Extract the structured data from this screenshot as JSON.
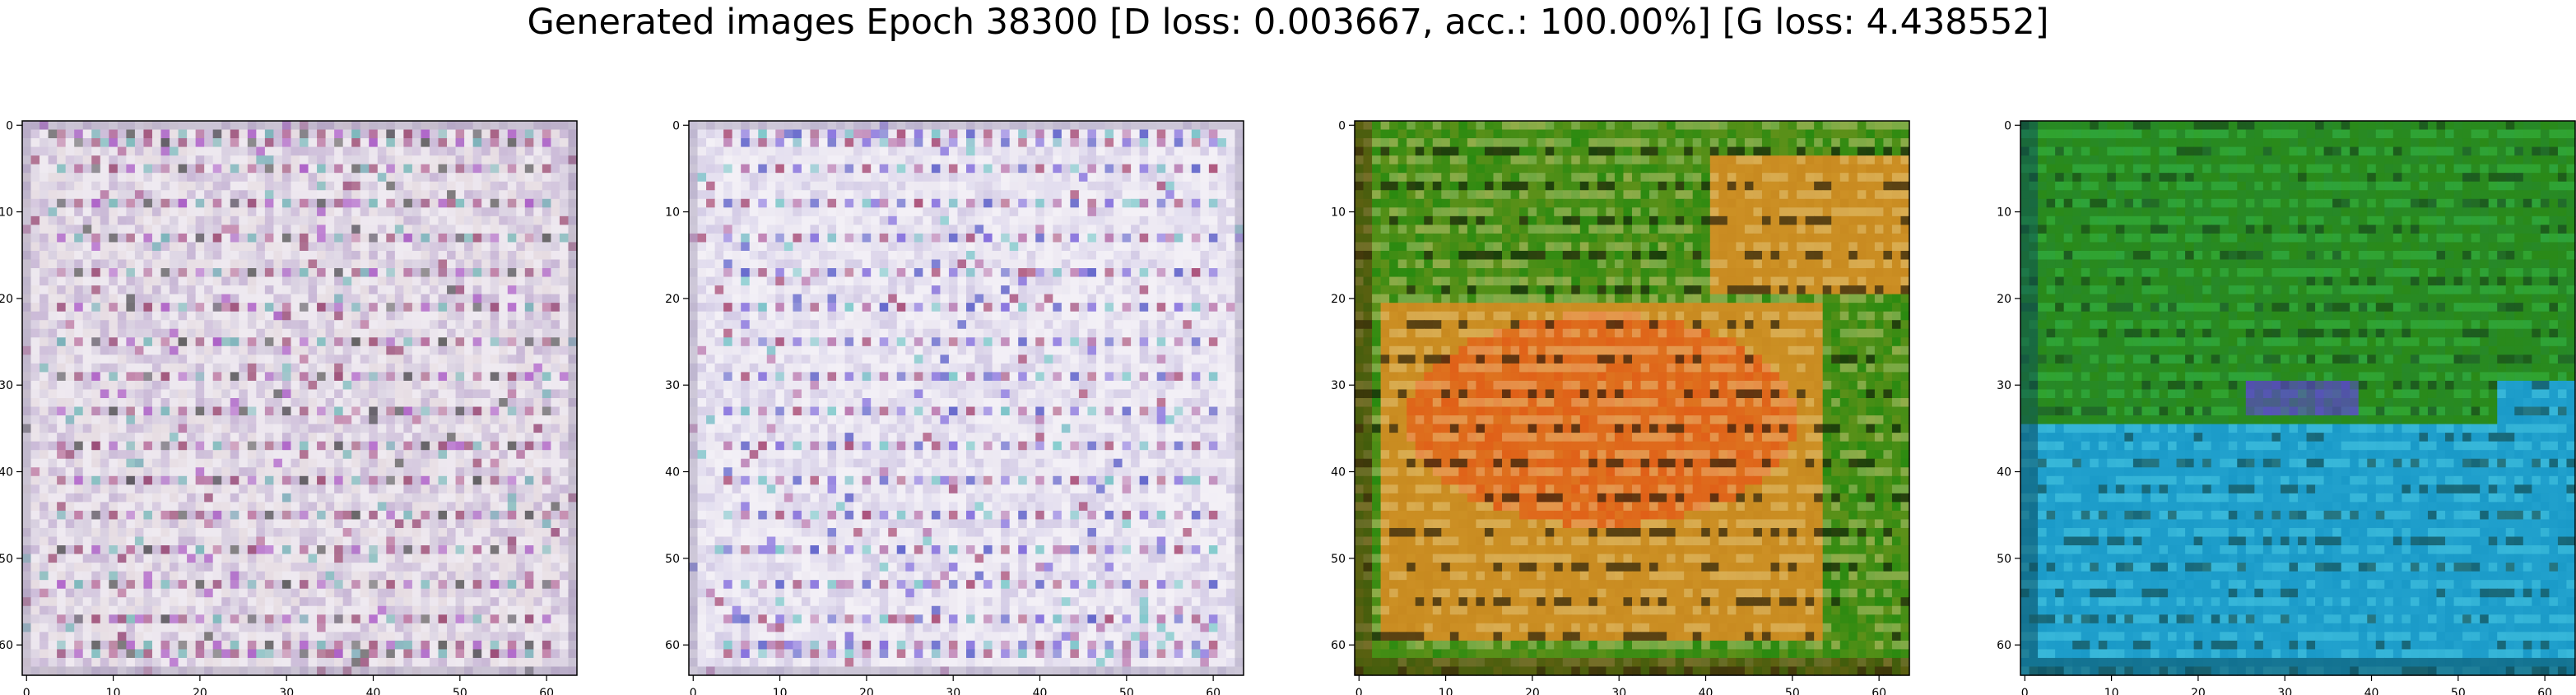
{
  "figure": {
    "title": "Generated images Epoch 38300 [D loss: 0.003667, acc.: 100.00%] [G loss: 4.438552]"
  },
  "chart_data": [
    {
      "type": "heatmap",
      "style": "noisy-pastel",
      "palette": [
        "#e6dce2",
        "#d8cfe0",
        "#ece6ee",
        "#c9b8d6"
      ],
      "accent": [
        "#8a2858",
        "#b05a8e",
        "#a040c0",
        "#3a3a3a",
        "#60b0b0"
      ],
      "xlim": [
        0,
        63
      ],
      "ylim": [
        63,
        0
      ],
      "xticks": [
        0,
        10,
        20,
        30,
        40,
        50,
        60
      ],
      "yticks": [
        0,
        10,
        20,
        30,
        40,
        50,
        60
      ]
    },
    {
      "type": "heatmap",
      "style": "noisy-pastel",
      "palette": [
        "#ece8f2",
        "#e2ddef",
        "#f2eff6",
        "#d4cce6"
      ],
      "accent": [
        "#9a2858",
        "#b060a0",
        "#6a50d8",
        "#3a40c0",
        "#60c0c0"
      ],
      "xlim": [
        0,
        63
      ],
      "ylim": [
        63,
        0
      ],
      "xticks": [
        0,
        10,
        20,
        30,
        40,
        50,
        60
      ],
      "yticks": [
        0,
        10,
        20,
        30,
        40,
        50,
        60
      ]
    },
    {
      "type": "heatmap",
      "style": "green-orange-stripes",
      "palette": [
        "#2a8a10",
        "#c88a20",
        "#e06018",
        "#d8a030"
      ],
      "accent": [
        "#101008",
        "#f0e0a0",
        "#e04020",
        "#5a3008"
      ],
      "xlim": [
        0,
        63
      ],
      "ylim": [
        63,
        0
      ],
      "xticks": [
        0,
        10,
        20,
        30,
        40,
        50,
        60
      ],
      "yticks": [
        0,
        10,
        20,
        30,
        40,
        50,
        60
      ]
    },
    {
      "type": "heatmap",
      "style": "green-cyan-stripes",
      "palette": [
        "#2a8a18",
        "#1a9ac8",
        "#30b0d8",
        "#208848"
      ],
      "accent": [
        "#102818",
        "#60e0f0",
        "#6040d8",
        "#0a4a5a"
      ],
      "xlim": [
        0,
        63
      ],
      "ylim": [
        63,
        0
      ],
      "xticks": [
        0,
        10,
        20,
        30,
        40,
        50,
        60
      ],
      "yticks": [
        0,
        10,
        20,
        30,
        40,
        50,
        60
      ]
    }
  ]
}
